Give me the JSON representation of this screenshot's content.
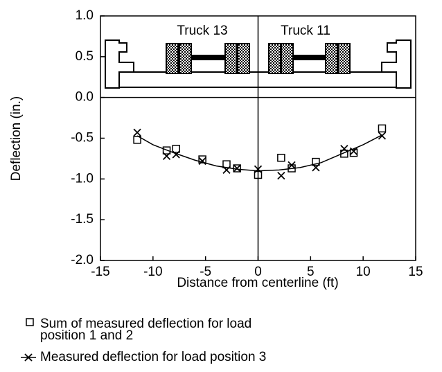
{
  "chart_data": {
    "type": "scatter",
    "xlabel": "Distance from centerline (ft)",
    "ylabel": "Deflection (in.)",
    "annotations": [
      "Truck 13",
      "Truck 11"
    ],
    "xlim": [
      -15,
      15
    ],
    "xticks": [
      -15,
      -10,
      -5,
      0,
      5,
      10,
      15
    ],
    "ylim": [
      -2,
      1
    ],
    "yticks": [
      {
        "value": -2,
        "label": "-2.0"
      },
      -1.5,
      {
        "value": -1,
        "label": "-1.0"
      },
      -0.5,
      {
        "value": 0,
        "label": "0.0"
      },
      0.5,
      {
        "value": 1,
        "label": "1.0"
      }
    ],
    "series": [
      {
        "name": "Sum of measured deflection for load position 1 and 2",
        "color": "#000000",
        "marker": "square",
        "x": [
          -11.5,
          -8.7,
          -7.8,
          -5.3,
          -3,
          -2,
          0,
          2.2,
          3.2,
          5.5,
          8.2,
          9.1,
          11.8
        ],
        "values": [
          -0.52,
          -0.65,
          -0.63,
          -0.76,
          -0.82,
          -0.87,
          -0.95,
          -0.74,
          -0.87,
          -0.79,
          -0.69,
          -0.68,
          -0.38
        ]
      },
      {
        "name": "Measured deflection for load position 3",
        "color": "#000000",
        "marker": "x",
        "x": [
          -11.5,
          -8.7,
          -7.8,
          -5.3,
          -3,
          -2,
          0,
          2.2,
          3.2,
          5.5,
          8.2,
          9.1,
          11.8
        ],
        "values": [
          -0.43,
          -0.72,
          -0.7,
          -0.78,
          -0.89,
          -0.87,
          -0.88,
          -0.96,
          -0.83,
          -0.86,
          -0.63,
          -0.66,
          -0.47
        ]
      },
      {
        "color": "#000000",
        "marker": "line",
        "x": [
          -11.5,
          -10,
          -8,
          -6,
          -4,
          -2,
          0,
          2,
          4,
          6,
          8,
          10,
          11.8
        ],
        "values": [
          -0.47,
          -0.58,
          -0.68,
          -0.77,
          -0.84,
          -0.88,
          -0.9,
          -0.89,
          -0.86,
          -0.8,
          -0.69,
          -0.58,
          -0.46
        ]
      }
    ]
  }
}
